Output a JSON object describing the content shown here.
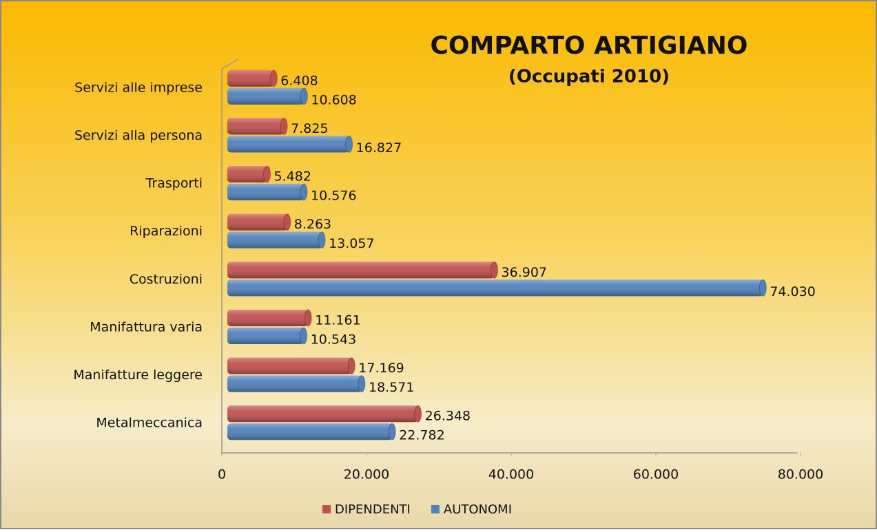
{
  "chart_data": {
    "type": "bar",
    "orientation": "horizontal",
    "title": "COMPARTO ARTIGIANO",
    "subtitle": "(Occupati 2010)",
    "categories": [
      "Servizi alle imprese",
      "Servizi alla persona",
      "Trasporti",
      "Riparazioni",
      "Costruzioni",
      "Manifattura varia",
      "Manifatture leggere",
      "Metalmeccanica"
    ],
    "series": [
      {
        "name": "DIPENDENTI",
        "color": "#c0504d",
        "values": [
          6408,
          7825,
          5482,
          8263,
          36907,
          11161,
          17169,
          26348
        ],
        "value_labels": [
          "6.408",
          "7.825",
          "5.482",
          "8.263",
          "36.907",
          "11.161",
          "17.169",
          "26.348"
        ]
      },
      {
        "name": "AUTONOMI",
        "color": "#4f81bd",
        "values": [
          10608,
          16827,
          10576,
          13057,
          74030,
          10543,
          18571,
          22782
        ],
        "value_labels": [
          "10.608",
          "16.827",
          "10.576",
          "13.057",
          "74.030",
          "10.543",
          "18.571",
          "22.782"
        ]
      }
    ],
    "xlim": [
      0,
      80000
    ],
    "xticks": [
      0,
      {
        "value": 20000,
        "label": "20.000"
      },
      {
        "value": 40000,
        "label": "40.000"
      },
      {
        "value": 60000,
        "label": "60.000"
      },
      {
        "value": 80000,
        "label": "80.000"
      }
    ],
    "legend": "bottom"
  }
}
